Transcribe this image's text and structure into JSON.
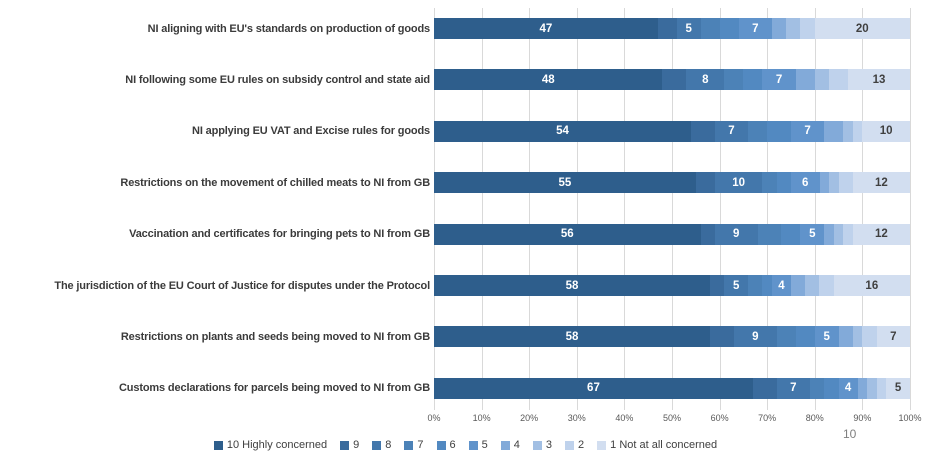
{
  "page_number": "10",
  "colors": {
    "palette": [
      "#2E5E8C",
      "#3A6B9D",
      "#4377AB",
      "#4C82B7",
      "#5289C1",
      "#6093CB",
      "#82AAD9",
      "#A2BFE3",
      "#BFD2EC",
      "#D2DEF0"
    ],
    "grid": "#D9D9D9",
    "category_text": "#3B3B3B",
    "axis_text": "#595959",
    "legend_text": "#404040",
    "label_on_light": "#404040",
    "label_on_dark": "#FFFFFF"
  },
  "chart_data": {
    "type": "bar",
    "stacked": true,
    "orientation": "horizontal",
    "title": "",
    "xlabel": "",
    "ylabel": "",
    "xlim": [
      0,
      100
    ],
    "grid": true,
    "legend_position": "bottom",
    "x_ticks": [
      "0%",
      "10%",
      "20%",
      "30%",
      "40%",
      "50%",
      "60%",
      "70%",
      "80%",
      "90%",
      "100%"
    ],
    "categories": [
      "NI aligning with EU's standards on production of goods",
      "NI following some EU rules on subsidy control and state aid",
      "NI applying EU VAT and Excise rules for goods",
      "Restrictions on the movement of chilled meats to NI from GB",
      "Vaccination and certificates for bringing pets to NI from GB",
      "The jurisdiction of the EU Court of Justice for disputes under  the Protocol",
      "Restrictions on plants and seeds being moved to NI from GB",
      "Customs declarations for parcels being moved to NI from GB"
    ],
    "series": [
      {
        "name": "10 Highly concerned",
        "values": [
          47,
          48,
          54,
          55,
          56,
          58,
          58,
          67
        ]
      },
      {
        "name": "9",
        "values": [
          4,
          5,
          5,
          4,
          3,
          3,
          5,
          5
        ]
      },
      {
        "name": "8",
        "values": [
          5,
          8,
          7,
          10,
          9,
          5,
          9,
          7
        ]
      },
      {
        "name": "7",
        "values": [
          4,
          4,
          4,
          3,
          5,
          3,
          4,
          3
        ]
      },
      {
        "name": "6",
        "values": [
          4,
          4,
          5,
          3,
          4,
          2,
          4,
          3
        ]
      },
      {
        "name": "5",
        "values": [
          7,
          7,
          7,
          6,
          5,
          4,
          5,
          4
        ]
      },
      {
        "name": "4",
        "values": [
          3,
          4,
          4,
          2,
          2,
          3,
          3,
          2
        ]
      },
      {
        "name": "3",
        "values": [
          3,
          3,
          2,
          2,
          2,
          3,
          2,
          2
        ]
      },
      {
        "name": "2",
        "values": [
          3,
          4,
          2,
          3,
          2,
          3,
          3,
          2
        ]
      },
      {
        "name": "1 Not at all concerned",
        "values": [
          20,
          13,
          10,
          12,
          12,
          16,
          7,
          5
        ]
      }
    ],
    "labeled_series_indices": [
      0,
      2,
      5,
      9
    ]
  }
}
